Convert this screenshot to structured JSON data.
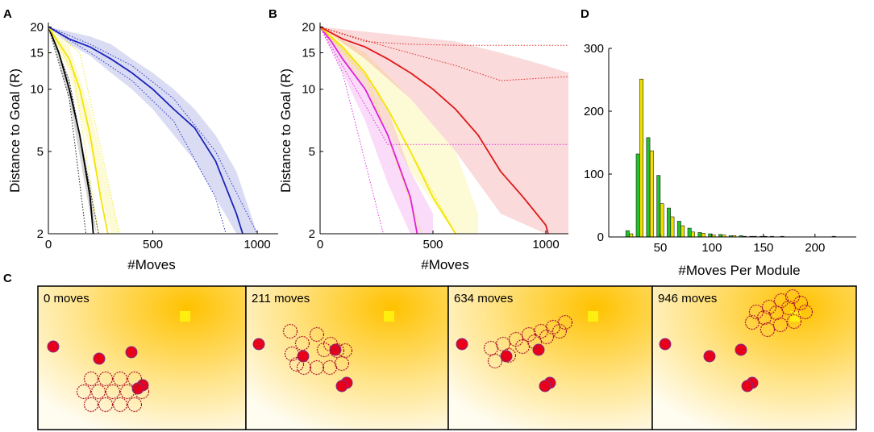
{
  "panel_labels": {
    "a": "A",
    "b": "B",
    "c": "C",
    "d": "D"
  },
  "chart_data": [
    {
      "panel": "A",
      "type": "line",
      "xlabel": "#Moves",
      "ylabel": "Distance to Goal (R)",
      "xlim": [
        0,
        1100
      ],
      "ylim": [
        2,
        21
      ],
      "y_scale": "log",
      "xticks": [
        0,
        500,
        1000
      ],
      "xtick_labels": [
        "0",
        "500",
        "1000"
      ],
      "yticks": [
        2,
        5,
        10,
        15,
        20
      ],
      "ytick_labels": [
        "2",
        "5",
        "10",
        "15",
        "20"
      ],
      "series": [
        {
          "name": "black",
          "color": "#000000",
          "x": [
            0,
            50,
            100,
            150,
            200,
            215
          ],
          "y": [
            20,
            15,
            10,
            6,
            3,
            2
          ],
          "band": {
            "x": [
              0,
              100,
              200,
              230
            ],
            "lower": [
              20,
              9,
              2.5,
              2
            ],
            "upper": [
              20,
              11,
              3.5,
              2
            ]
          },
          "trials": [
            {
              "x": [
                0,
                100,
                180
              ],
              "y": [
                20,
                9,
                2
              ]
            },
            {
              "x": [
                0,
                100,
                240
              ],
              "y": [
                20,
                11,
                2
              ]
            }
          ]
        },
        {
          "name": "yellow",
          "color": "#f5e400",
          "x": [
            0,
            100,
            150,
            200,
            250,
            285
          ],
          "y": [
            20,
            14,
            10,
            6,
            3,
            2
          ],
          "band": {
            "x": [
              0,
              100,
              200,
              300,
              340
            ],
            "lower": [
              20,
              12,
              5,
              2,
              2
            ],
            "upper": [
              20,
              16,
              8,
              3,
              2
            ]
          },
          "trials": [
            {
              "x": [
                0,
                120,
                240
              ],
              "y": [
                20,
                12,
                2
              ]
            },
            {
              "x": [
                0,
                150,
                340
              ],
              "y": [
                20,
                15,
                2
              ]
            }
          ]
        },
        {
          "name": "blue",
          "color": "#1a24b8",
          "x": [
            0,
            100,
            200,
            300,
            400,
            500,
            600,
            700,
            800,
            900,
            930
          ],
          "y": [
            20,
            17.5,
            16,
            14,
            12,
            10,
            8,
            6.5,
            4.5,
            2.5,
            2
          ],
          "band": {
            "x": [
              0,
              100,
              200,
              300,
              400,
              500,
              600,
              700,
              800,
              900,
              1000
            ],
            "lower": [
              20,
              16.5,
              14.5,
              12,
              10,
              8,
              6,
              4.5,
              3,
              2,
              2
            ],
            "upper": [
              20,
              19,
              18,
              16.5,
              14,
              12,
              10,
              8,
              6,
              4,
              2
            ]
          },
          "trials": [
            {
              "x": [
                0,
                200,
                400,
                600,
                800,
                850
              ],
              "y": [
                20,
                15,
                11,
                7,
                3,
                2
              ]
            },
            {
              "x": [
                0,
                200,
                400,
                600,
                800,
                1000
              ],
              "y": [
                20,
                16.5,
                13,
                9,
                5,
                2
              ]
            }
          ]
        }
      ]
    },
    {
      "panel": "B",
      "type": "line",
      "xlabel": "#Moves",
      "ylabel": "Distance to Goal (R)",
      "xlim": [
        0,
        1100
      ],
      "ylim": [
        2,
        21
      ],
      "y_scale": "log",
      "xticks": [
        0,
        500,
        1000
      ],
      "xtick_labels": [
        "0",
        "500",
        "1000"
      ],
      "yticks": [
        2,
        5,
        10,
        15,
        20
      ],
      "ytick_labels": [
        "2",
        "5",
        "10",
        "15",
        "20"
      ],
      "series": [
        {
          "name": "magenta",
          "color": "#e020d8",
          "x": [
            0,
            50,
            100,
            200,
            300,
            400,
            430
          ],
          "y": [
            20,
            17,
            14,
            10,
            6,
            3,
            2
          ],
          "band": {
            "x": [
              0,
              100,
              200,
              300,
              400,
              500
            ],
            "lower": [
              20,
              12,
              7,
              3.5,
              2,
              2
            ],
            "upper": [
              20,
              16,
              12,
              8,
              4,
              2.5
            ]
          },
          "trials": [
            {
              "x": [
                0,
                100,
                280
              ],
              "y": [
                20,
                12,
                2
              ]
            },
            {
              "x": [
                0,
                300,
                1100
              ],
              "y": [
                20,
                5.4,
                5.4
              ]
            }
          ]
        },
        {
          "name": "yellow",
          "color": "#f5e400",
          "x": [
            0,
            100,
            200,
            300,
            400,
            500,
            600
          ],
          "y": [
            20,
            16,
            12,
            8,
            5,
            3,
            2
          ],
          "band": {
            "x": [
              0,
              200,
              400,
              600,
              700
            ],
            "lower": [
              20,
              10,
              4,
              2,
              2
            ],
            "upper": [
              20,
              15,
              9,
              5,
              2.5
            ]
          },
          "trials": [
            {
              "x": [
                0,
                200,
                450
              ],
              "y": [
                20,
                12,
                2
              ]
            },
            {
              "x": [
                0,
                250,
                600
              ],
              "y": [
                20,
                10,
                2
              ]
            }
          ]
        },
        {
          "name": "red",
          "color": "#e01818",
          "x": [
            0,
            100,
            200,
            300,
            400,
            500,
            600,
            700,
            800,
            900,
            1000,
            1010
          ],
          "y": [
            20,
            17.5,
            16,
            14,
            12,
            10,
            8,
            6,
            4,
            3,
            2.2,
            2
          ],
          "band": {
            "x": [
              0,
              200,
              400,
              600,
              800,
              1000,
              1100
            ],
            "lower": [
              20,
              14,
              9,
              5,
              2.5,
              2,
              2
            ],
            "upper": [
              20,
              19,
              18,
              17,
              15,
              13,
              12
            ]
          },
          "trials": [
            {
              "x": [
                0,
                200,
                400,
                600,
                800,
                1100
              ],
              "y": [
                20,
                17,
                16.5,
                16.3,
                16.3,
                16.3
              ]
            },
            {
              "x": [
                0,
                300,
                600,
                800,
                1100
              ],
              "y": [
                20,
                16,
                13,
                11,
                11.5
              ]
            }
          ]
        }
      ]
    },
    {
      "panel": "D",
      "type": "bar",
      "xlabel": "#Moves Per Module",
      "ylabel": "",
      "xlim": [
        0,
        240
      ],
      "ylim": [
        0,
        300
      ],
      "xticks": [
        50,
        100,
        150,
        200
      ],
      "xtick_labels": [
        "50",
        "100",
        "150",
        "200"
      ],
      "yticks": [
        0,
        100,
        200,
        300
      ],
      "ytick_labels": [
        "0",
        "100",
        "200",
        "300"
      ],
      "categories": [
        20,
        30,
        40,
        50,
        60,
        70,
        80,
        90,
        100,
        110,
        120,
        130,
        140,
        150,
        160,
        170,
        180,
        190,
        200,
        210,
        220
      ],
      "series": [
        {
          "name": "green",
          "color": "#22c02a",
          "values": [
            10,
            132,
            158,
            98,
            46,
            25,
            14,
            7,
            5,
            4,
            2,
            2,
            1,
            1,
            1,
            1,
            0,
            0,
            0,
            0,
            1
          ]
        },
        {
          "name": "yellow",
          "color": "#f0e000",
          "values": [
            5,
            251,
            137,
            53,
            32,
            18,
            8,
            6,
            3,
            3,
            2,
            1,
            1,
            1,
            0,
            0,
            0,
            0,
            0,
            0,
            0
          ]
        }
      ]
    }
  ],
  "snapshots": [
    {
      "label": "0 moves",
      "obstacles": [
        "obstacle",
        "obstacle",
        "obstacle",
        "obstacle",
        "obstacle"
      ],
      "modules_count": 13
    },
    {
      "label": "211 moves",
      "obstacles": [
        "obstacle",
        "obstacle",
        "obstacle",
        "obstacle",
        "obstacle"
      ],
      "modules_count": 13
    },
    {
      "label": "634 moves",
      "obstacles": [
        "obstacle",
        "obstacle",
        "obstacle",
        "obstacle",
        "obstacle"
      ],
      "modules_count": 13
    },
    {
      "label": "946 moves",
      "obstacles": [
        "obstacle",
        "obstacle",
        "obstacle",
        "obstacle",
        "obstacle"
      ],
      "modules_count": 13
    }
  ],
  "colors": {
    "goal": "#ffef10",
    "obstacle": "#e8001a",
    "module_stroke": "#b01830",
    "bg_center": "#ffc400",
    "bg_edge": "#fffbe8"
  }
}
